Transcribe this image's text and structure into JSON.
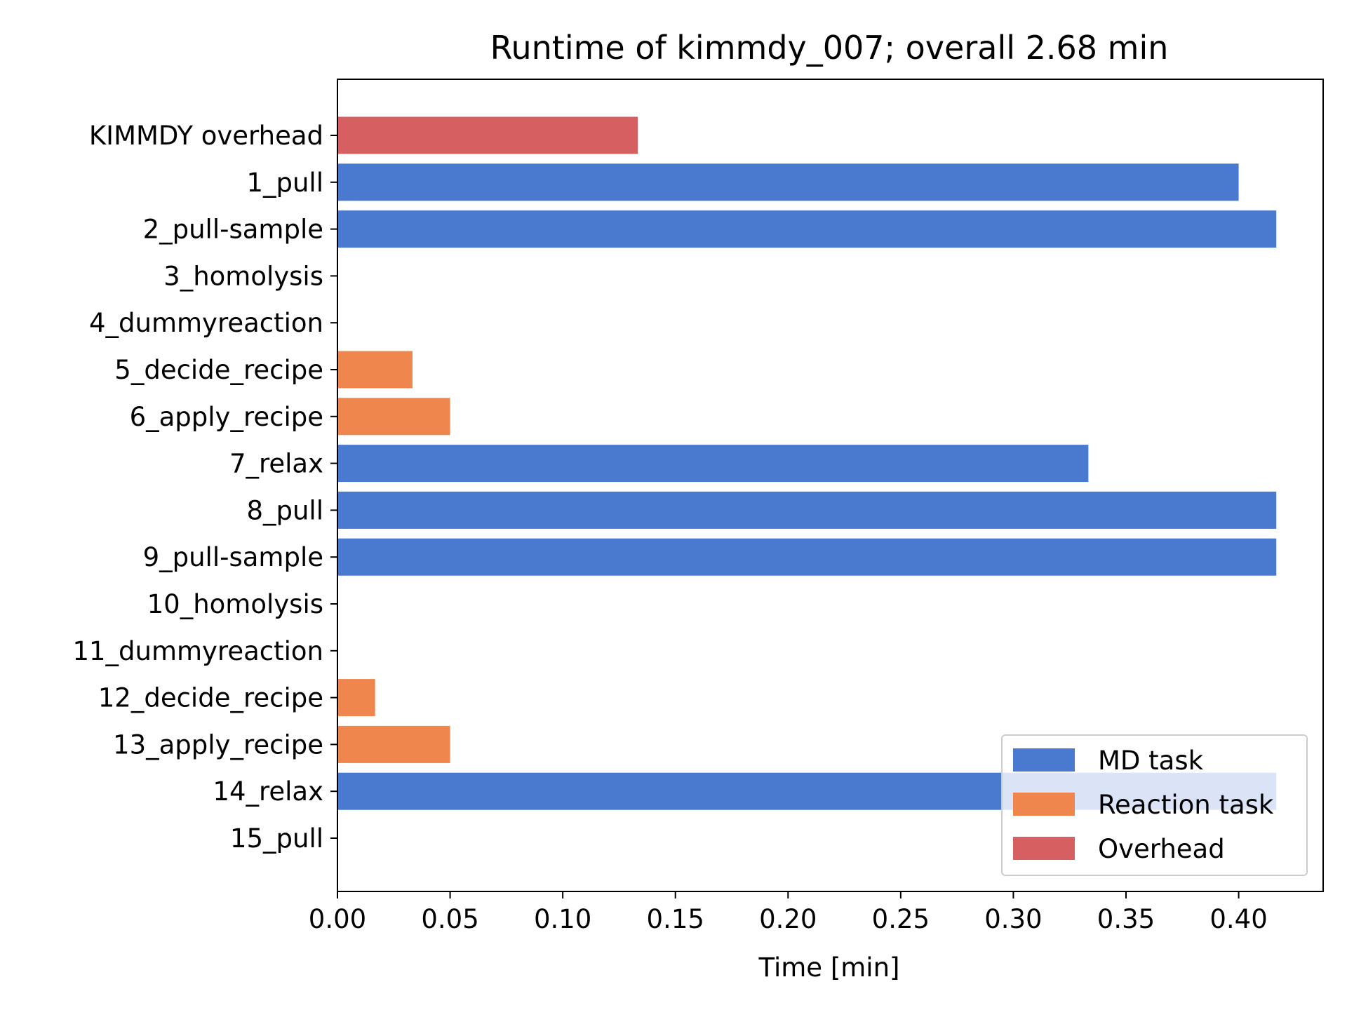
{
  "chart_data": {
    "type": "bar",
    "orientation": "horizontal",
    "title": "Runtime of kimmdy_007; overall 2.68 min",
    "xlabel": "Time [min]",
    "ylabel": "",
    "xlim": [
      0,
      0.4375
    ],
    "xticks": [
      "0.00",
      "0.05",
      "0.10",
      "0.15",
      "0.20",
      "0.25",
      "0.30",
      "0.35",
      "0.40"
    ],
    "grid": false,
    "legend_position": "bottom-right",
    "colors": {
      "MD task": "#4a79d0",
      "Reaction task": "#ee864e",
      "Overhead": "#d66061"
    },
    "legend": [
      "MD task",
      "Reaction task",
      "Overhead"
    ],
    "categories": [
      "KIMMDY overhead",
      "1_pull",
      "2_pull-sample",
      "3_homolysis",
      "4_dummyreaction",
      "5_decide_recipe",
      "6_apply_recipe",
      "7_relax",
      "8_pull",
      "9_pull-sample",
      "10_homolysis",
      "11_dummyreaction",
      "12_decide_recipe",
      "13_apply_recipe",
      "14_relax",
      "15_pull"
    ],
    "values": [
      0.1333,
      0.4,
      0.4167,
      0,
      0,
      0.0333,
      0.05,
      0.3333,
      0.4167,
      0.4167,
      0,
      0,
      0.0167,
      0.05,
      0.4167,
      0
    ],
    "task_types": [
      "Overhead",
      "MD task",
      "MD task",
      "Reaction task",
      "Reaction task",
      "Reaction task",
      "Reaction task",
      "MD task",
      "MD task",
      "MD task",
      "Reaction task",
      "Reaction task",
      "Reaction task",
      "Reaction task",
      "MD task",
      "MD task"
    ]
  }
}
